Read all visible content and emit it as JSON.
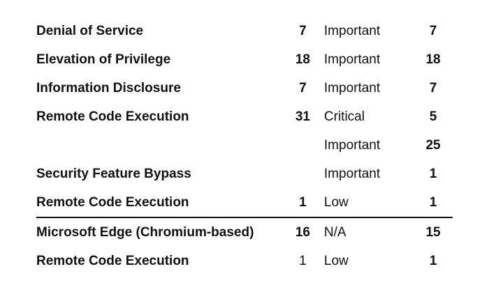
{
  "rows": [
    {
      "name": "Denial of Service",
      "count": "7",
      "severity": "Important",
      "severity_count": "7"
    },
    {
      "name": "Elevation of Privilege",
      "count": "18",
      "severity": "Important",
      "severity_count": "18"
    },
    {
      "name": "Information Disclosure",
      "count": "7",
      "severity": "Important",
      "severity_count": "7"
    },
    {
      "name": "Remote Code Execution",
      "count": "31",
      "severity": "Critical",
      "severity_count": "5"
    },
    {
      "name": "",
      "count": "",
      "severity": "Important",
      "severity_count": "25"
    },
    {
      "name": "Security Feature Bypass",
      "count": "",
      "severity": "Important",
      "severity_count": "1"
    },
    {
      "name": "Remote Code Execution",
      "count": "1",
      "severity": "Low",
      "severity_count": "1"
    },
    {
      "name": "Microsoft Edge (Chromium-based)",
      "count": "16",
      "severity": "N/A",
      "severity_count": "15"
    },
    {
      "name": "Remote Code Execution",
      "count": "1",
      "severity": "Low",
      "severity_count": "1"
    }
  ]
}
